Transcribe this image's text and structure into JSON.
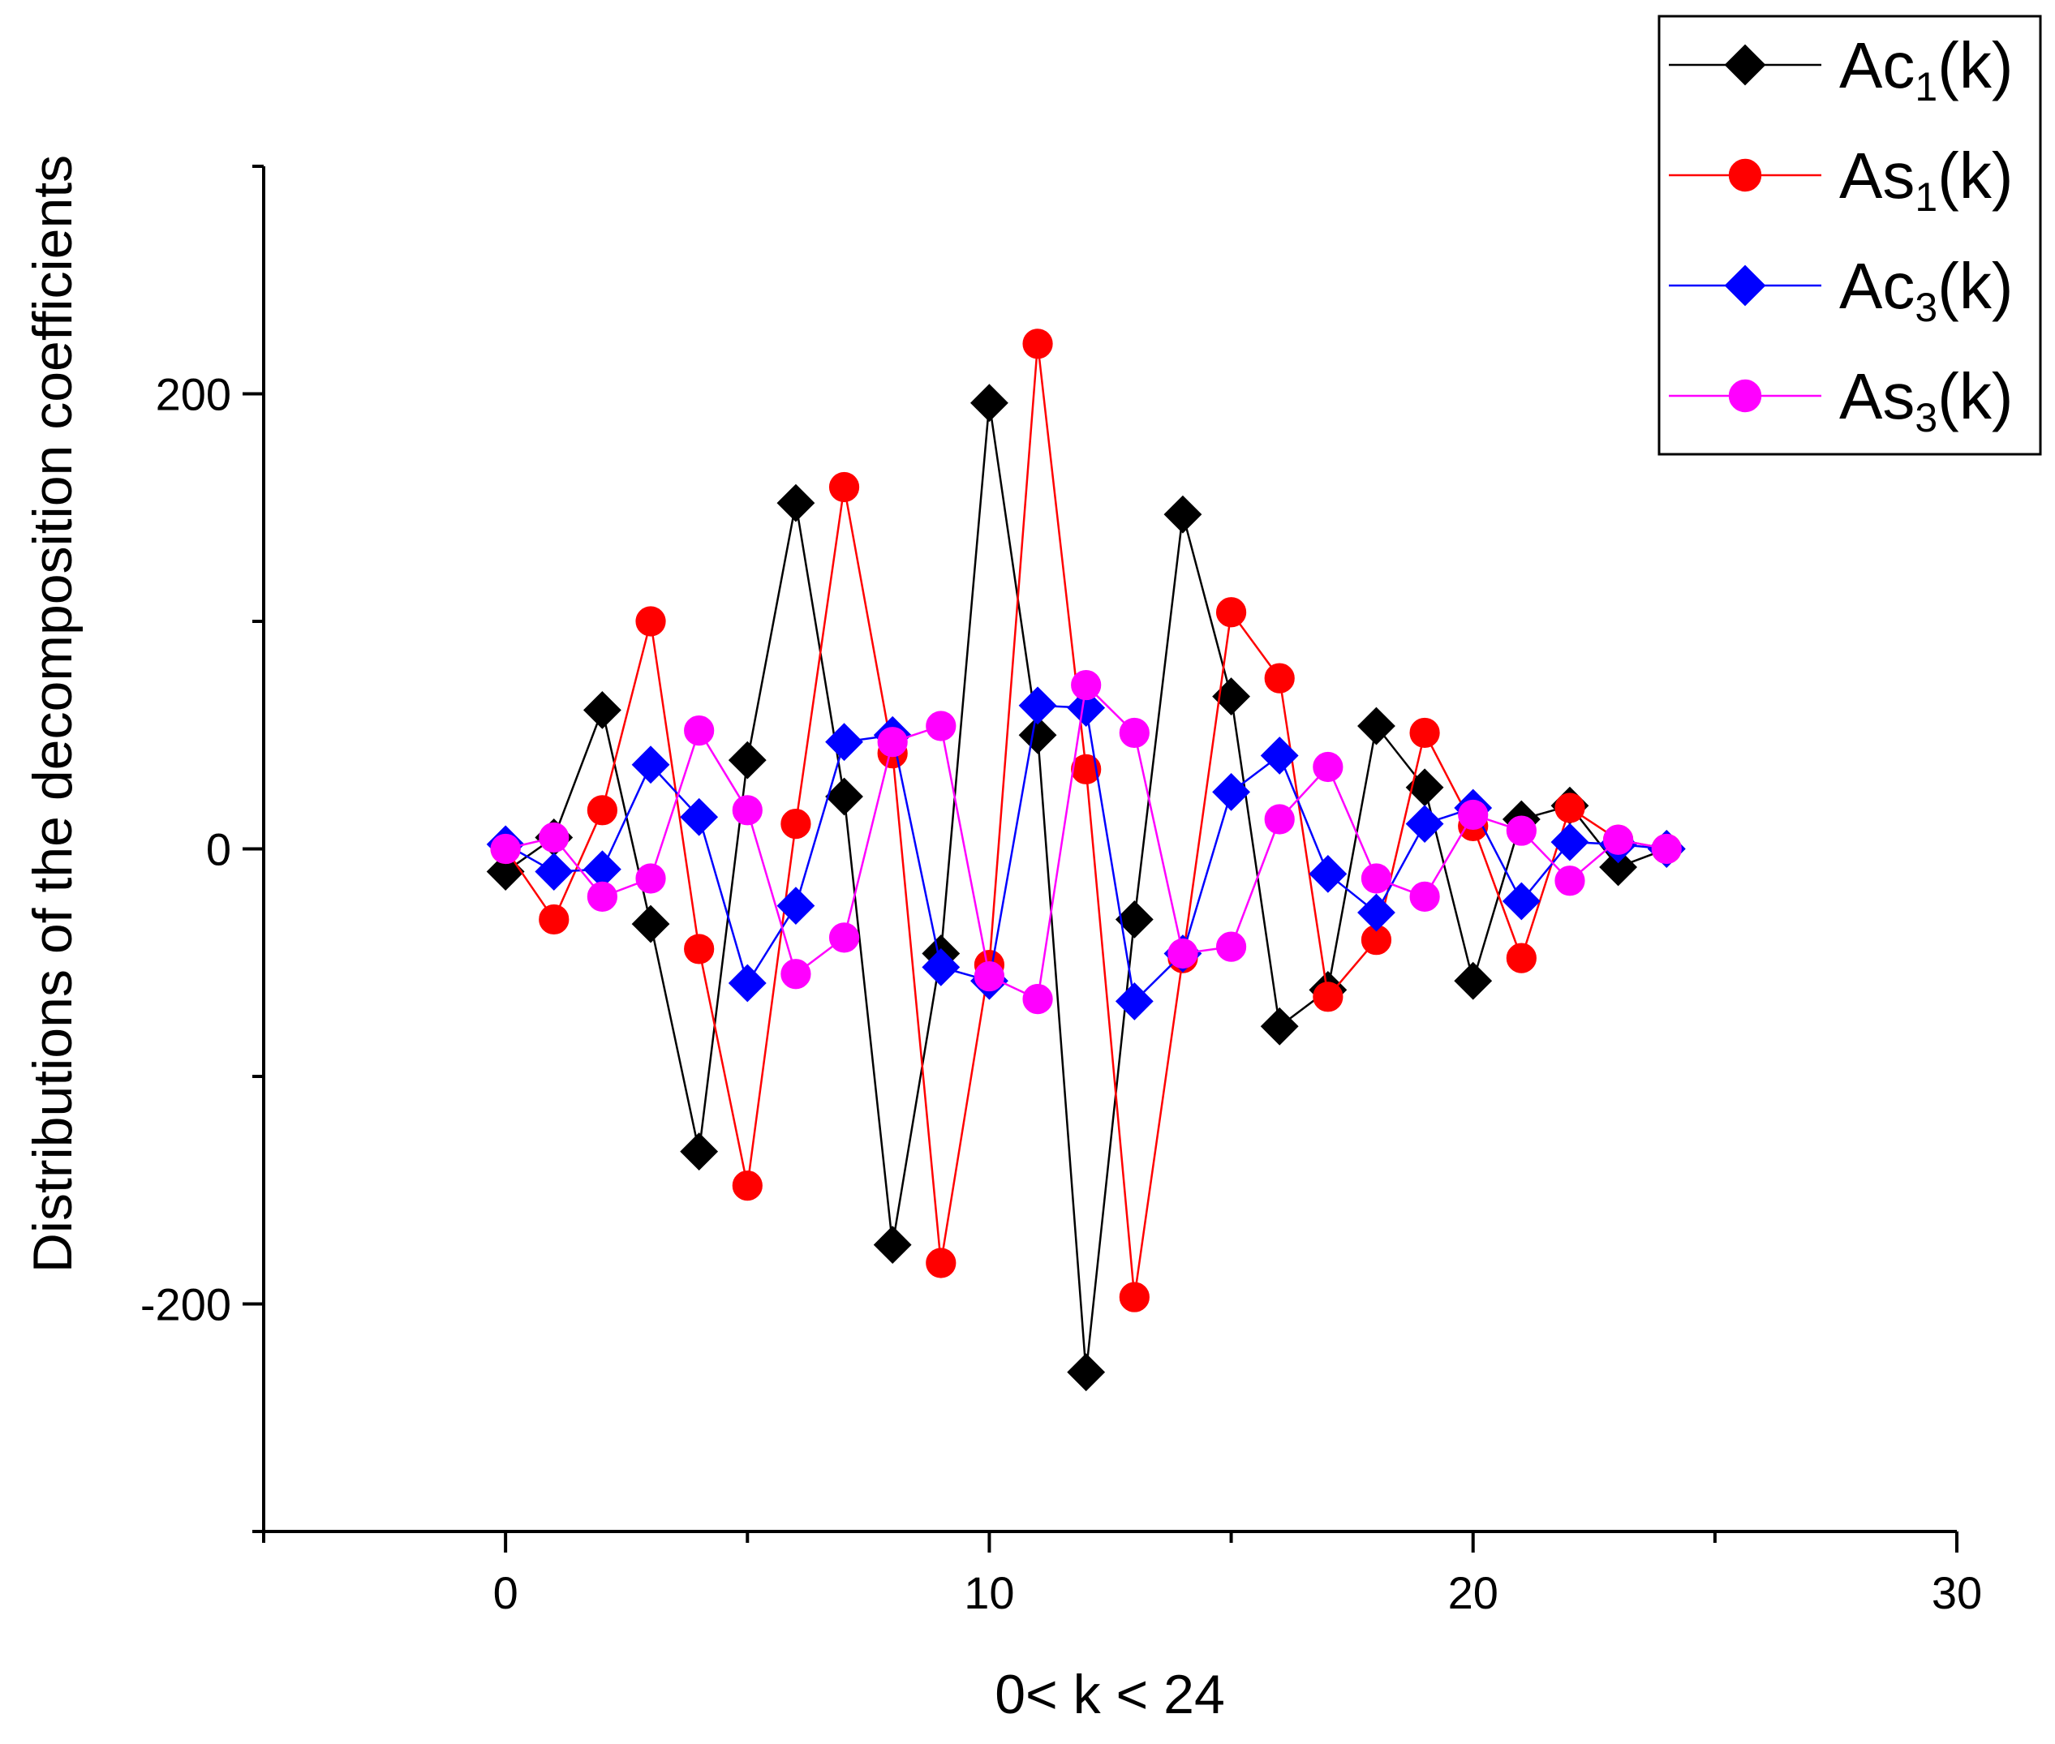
{
  "chart_data": {
    "type": "line",
    "title": "",
    "xlabel": "0< k < 24",
    "ylabel": "Distributions of the decomposition coefficients",
    "xlim": [
      -5,
      30
    ],
    "ylim": [
      -300,
      300
    ],
    "x_ticks": [
      0,
      10,
      20,
      30
    ],
    "x_tick_labels": [
      "0",
      "10",
      "20",
      "30"
    ],
    "y_ticks": [
      -200,
      0,
      200
    ],
    "y_tick_labels": [
      "-200",
      "0",
      "200"
    ],
    "grid": false,
    "legend_position": "top-right",
    "x": [
      0,
      1,
      2,
      3,
      4,
      5,
      6,
      7,
      8,
      9,
      10,
      11,
      12,
      13,
      14,
      15,
      16,
      17,
      18,
      19,
      20,
      21,
      22,
      23,
      24
    ],
    "series": [
      {
        "name": "Ac1(k)",
        "label_main": "Ac",
        "label_sub": "1",
        "label_tail": "(k)",
        "color": "#000000",
        "marker": "diamond",
        "values": [
          -10,
          5,
          61,
          -33,
          -133,
          39,
          152,
          23,
          -174,
          -46,
          196,
          50,
          -230,
          -31,
          147,
          67,
          -78,
          -62,
          54,
          27,
          -58,
          13,
          19,
          -8,
          0
        ]
      },
      {
        "name": "As1(k)",
        "label_main": "As",
        "label_sub": "1",
        "label_tail": "(k)",
        "color": "#ff0000",
        "marker": "circle",
        "values": [
          0,
          -31,
          17,
          100,
          -44,
          -148,
          11,
          159,
          42,
          -182,
          -51,
          222,
          35,
          -197,
          -48,
          104,
          75,
          -65,
          -40,
          51,
          10,
          -48,
          18,
          4,
          0
        ]
      },
      {
        "name": "Ac3(k)",
        "label_main": "Ac",
        "label_sub": "3",
        "label_tail": "(k)",
        "color": "#0000ff",
        "marker": "diamond",
        "values": [
          2,
          -10,
          -9,
          37,
          14,
          -59,
          -25,
          47,
          50,
          -52,
          -58,
          63,
          62,
          -67,
          -46,
          25,
          41,
          -11,
          -28,
          11,
          18,
          -23,
          3,
          2,
          0
        ]
      },
      {
        "name": "As3(k)",
        "label_main": "As",
        "label_sub": "3",
        "label_tail": "(k)",
        "color": "#ff00ff",
        "marker": "circle",
        "values": [
          0,
          5,
          -21,
          -13,
          52,
          17,
          -55,
          -39,
          47,
          54,
          -56,
          -66,
          72,
          51,
          -46,
          -43,
          13,
          36,
          -13,
          -21,
          15,
          8,
          -14,
          4,
          0
        ]
      }
    ]
  }
}
